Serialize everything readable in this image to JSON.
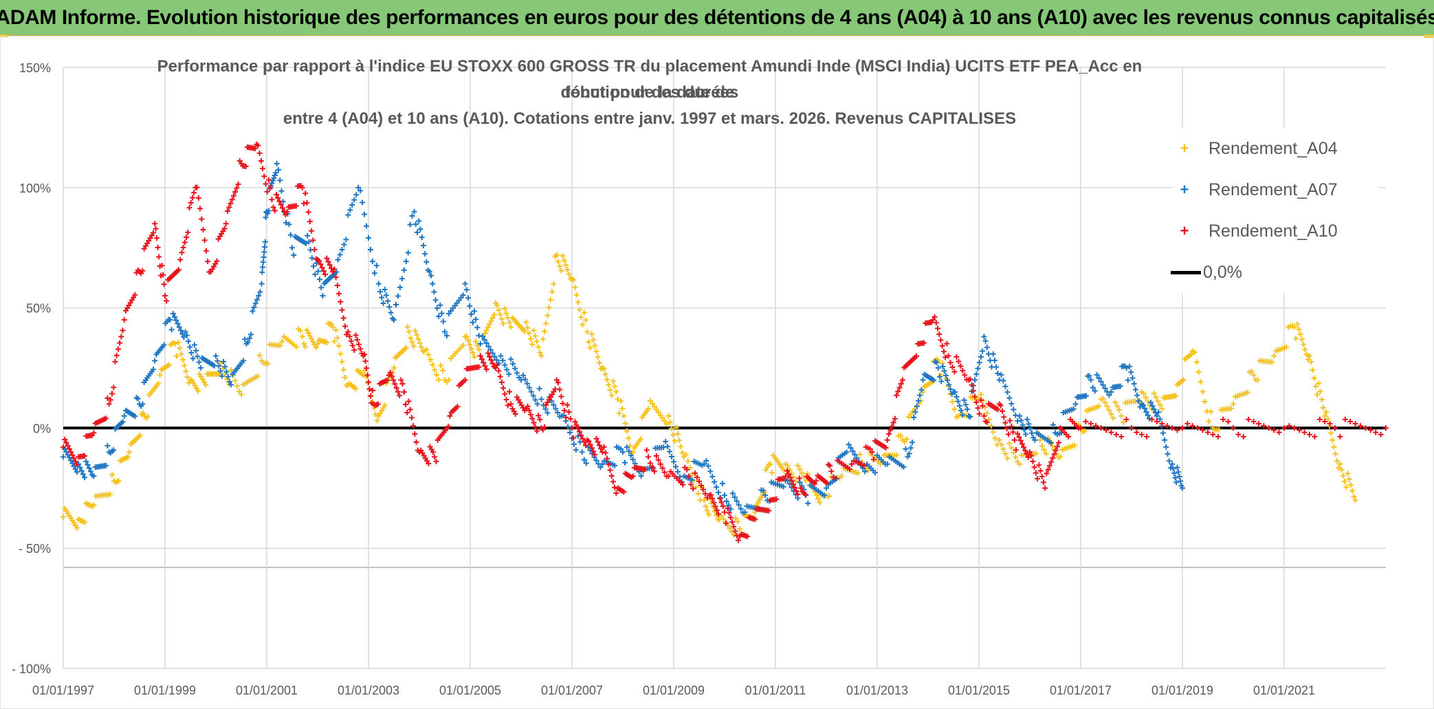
{
  "banner": {
    "text": "ADAM Informe. Evolution historique des performances en euros pour des détentions de 4 ans (A04) à 10 ans (A10) avec les revenus connus capitalisés"
  },
  "colors": {
    "banner_bg": "#86c878",
    "a04": "#f7c21f",
    "a07": "#1f77c4",
    "a10": "#e8131b",
    "zero": "#000000",
    "grid": "#d9d9d9",
    "text": "#595959"
  },
  "chart_data": {
    "type": "scatter",
    "title_lines": [
      "Performance par rapport à l'indice EU STOXX 600 GROSS TR  du placement Amundi Inde (MSCI India) UCITS ETF PEA_Acc en fonction de la date de",
      "début pour des durées",
      "entre 4 (A04) et 10 ans (A10). Cotations entre janv. 1997 et mars. 2026. Revenus CAPITALISES"
    ],
    "xlabel": "",
    "ylabel": "",
    "x_range": [
      1997.0,
      2023.0
    ],
    "ylim": [
      -100,
      150
    ],
    "y_ticks": [
      {
        "value": 150,
        "label": "150%"
      },
      {
        "value": 100,
        "label": "100%"
      },
      {
        "value": 50,
        "label": "50%"
      },
      {
        "value": 0,
        "label": "0%"
      },
      {
        "value": -50,
        "label": "- 50%"
      },
      {
        "value": -100,
        "label": "- 100%"
      }
    ],
    "x_ticks": [
      {
        "value": 1997,
        "label": "01/01/1997"
      },
      {
        "value": 1999,
        "label": "01/01/1999"
      },
      {
        "value": 2001,
        "label": "01/01/2001"
      },
      {
        "value": 2003,
        "label": "01/01/2003"
      },
      {
        "value": 2005,
        "label": "01/01/2005"
      },
      {
        "value": 2007,
        "label": "01/01/2007"
      },
      {
        "value": 2009,
        "label": "01/01/2009"
      },
      {
        "value": 2011,
        "label": "01/01/2011"
      },
      {
        "value": 2013,
        "label": "01/01/2013"
      },
      {
        "value": 2015,
        "label": "01/01/2015"
      },
      {
        "value": 2017,
        "label": "01/01/2017"
      },
      {
        "value": 2019,
        "label": "01/01/2019"
      },
      {
        "value": 2021,
        "label": "01/01/2021"
      }
    ],
    "legend": [
      {
        "name": "Rendement_A04",
        "color": "#f7c21f",
        "kind": "marker"
      },
      {
        "name": "Rendement_A07",
        "color": "#1f77c4",
        "kind": "marker"
      },
      {
        "name": "Rendement_A10",
        "color": "#e8131b",
        "kind": "marker"
      },
      {
        "name": "0,0%",
        "color": "#000000",
        "kind": "line"
      }
    ],
    "zero_line": {
      "y": 0
    },
    "series": [
      {
        "name": "Rendement_A04",
        "color": "#f7c21f",
        "x": [
          1997.0,
          1997.3,
          1997.6,
          1998.0,
          1998.3,
          1998.6,
          1998.9,
          1999.2,
          1999.5,
          1999.8,
          2000.1,
          2000.5,
          2000.9,
          2001.3,
          2001.7,
          2002.0,
          2002.3,
          2002.6,
          2002.9,
          2003.2,
          2003.5,
          2003.8,
          2004.1,
          2004.5,
          2004.9,
          2005.2,
          2005.5,
          2005.8,
          2006.1,
          2006.4,
          2006.7,
          2007.0,
          2007.3,
          2007.6,
          2007.9,
          2008.2,
          2008.5,
          2008.9,
          2009.2,
          2009.6,
          2009.9,
          2010.3,
          2010.6,
          2010.9,
          2011.2,
          2011.6,
          2011.9,
          2012.3,
          2012.7,
          2013.1,
          2013.5,
          2013.9,
          2014.2,
          2014.6,
          2015.0,
          2015.4,
          2015.8,
          2016.2,
          2016.6,
          2017.0,
          2017.4,
          2017.8,
          2018.2,
          2018.6,
          2018.9,
          2019.2,
          2019.6,
          2020.0,
          2020.4,
          2020.8,
          2021.2,
          2021.5,
          2021.8,
          2022.1,
          2022.4
        ],
        "values": [
          -37,
          -38,
          -32,
          -22,
          -10,
          5,
          22,
          35,
          20,
          18,
          27,
          14,
          28,
          36,
          38,
          35,
          42,
          18,
          22,
          5,
          25,
          40,
          32,
          20,
          38,
          30,
          52,
          42,
          44,
          30,
          72,
          62,
          40,
          25,
          12,
          -10,
          8,
          5,
          -12,
          -30,
          -38,
          -42,
          -35,
          -15,
          -15,
          -22,
          -28,
          -20,
          -14,
          -14,
          -5,
          15,
          28,
          5,
          12,
          -5,
          -15,
          -5,
          -12,
          0,
          12,
          5,
          15,
          8,
          18,
          32,
          0,
          10,
          22,
          30,
          42,
          30,
          5,
          -15,
          -30
        ]
      },
      {
        "name": "Rendement_A07",
        "color": "#1f77c4",
        "x": [
          1997.0,
          1997.3,
          1997.6,
          1997.9,
          1998.2,
          1998.5,
          1998.8,
          1999.1,
          1999.4,
          1999.7,
          2000.0,
          2000.3,
          2000.6,
          2000.9,
          2001.0,
          2001.2,
          2001.5,
          2001.8,
          2002.1,
          2002.4,
          2002.8,
          2003.2,
          2003.5,
          2003.9,
          2004.2,
          2004.5,
          2004.9,
          2005.2,
          2005.6,
          2006.0,
          2006.4,
          2006.8,
          2007.2,
          2007.6,
          2008.0,
          2008.4,
          2008.8,
          2009.2,
          2009.6,
          2010.0,
          2010.4,
          2010.8,
          2011.2,
          2011.6,
          2012.0,
          2012.4,
          2012.8,
          2013.2,
          2013.6,
          2013.9,
          2014.2,
          2014.5,
          2014.8,
          2015.1,
          2015.4,
          2015.8,
          2016.1,
          2016.5,
          2016.9,
          2017.2,
          2017.6,
          2017.9,
          2018.2,
          2018.5,
          2018.8,
          2019.0
        ],
        "values": [
          -12,
          -15,
          -20,
          -10,
          5,
          10,
          28,
          45,
          40,
          25,
          30,
          18,
          35,
          60,
          90,
          110,
          75,
          80,
          55,
          70,
          100,
          60,
          45,
          90,
          65,
          40,
          60,
          35,
          30,
          20,
          12,
          5,
          -10,
          -15,
          -10,
          -18,
          -8,
          -20,
          -15,
          -28,
          -35,
          -28,
          -22,
          -28,
          -25,
          -10,
          -15,
          -15,
          -12,
          20,
          25,
          15,
          5,
          38,
          20,
          5,
          -5,
          -2,
          10,
          20,
          15,
          25,
          10,
          5,
          -15,
          -25
        ]
      },
      {
        "name": "Rendement_A10",
        "color": "#e8131b",
        "x": [
          1997.0,
          1997.3,
          1997.6,
          1997.9,
          1998.2,
          1998.5,
          1998.8,
          1999.0,
          1999.3,
          1999.6,
          1999.9,
          2000.2,
          2000.5,
          2000.8,
          2001.1,
          2001.4,
          2001.7,
          2002.0,
          2002.3,
          2002.6,
          2002.9,
          2003.1,
          2003.4,
          2003.7,
          2004.0,
          2004.3,
          2004.6,
          2004.9,
          2005.2,
          2005.5,
          2005.8,
          2006.1,
          2006.4,
          2006.7,
          2007.0,
          2007.3,
          2007.6,
          2007.9,
          2008.2,
          2008.5,
          2008.9,
          2009.3,
          2009.7,
          2010.0,
          2010.3,
          2010.6,
          2010.9,
          2011.2,
          2011.5,
          2011.8,
          2012.1,
          2012.5,
          2012.9,
          2013.2,
          2013.5,
          2013.8,
          2014.1,
          2014.4,
          2014.8,
          2015.1,
          2015.4,
          2015.7,
          2016.0,
          2016.3,
          2016.6,
          2017.0,
          2018.0,
          2019.0,
          2020.0,
          2021.0,
          2022.0,
          2023.0
        ],
        "values": [
          -8,
          -12,
          -2,
          10,
          45,
          65,
          85,
          55,
          70,
          100,
          65,
          85,
          110,
          118,
          95,
          90,
          100,
          70,
          65,
          40,
          30,
          10,
          22,
          15,
          -10,
          -12,
          5,
          20,
          30,
          25,
          10,
          8,
          0,
          20,
          0,
          -5,
          -10,
          -25,
          -20,
          -12,
          -20,
          -20,
          -28,
          -35,
          -45,
          -38,
          -30,
          -20,
          -25,
          -22,
          -18,
          -15,
          -10,
          -5,
          20,
          35,
          45,
          30,
          20,
          5,
          10,
          -5,
          -10,
          -25,
          0,
          0,
          0,
          0,
          0,
          0,
          0,
          0
        ]
      }
    ]
  }
}
